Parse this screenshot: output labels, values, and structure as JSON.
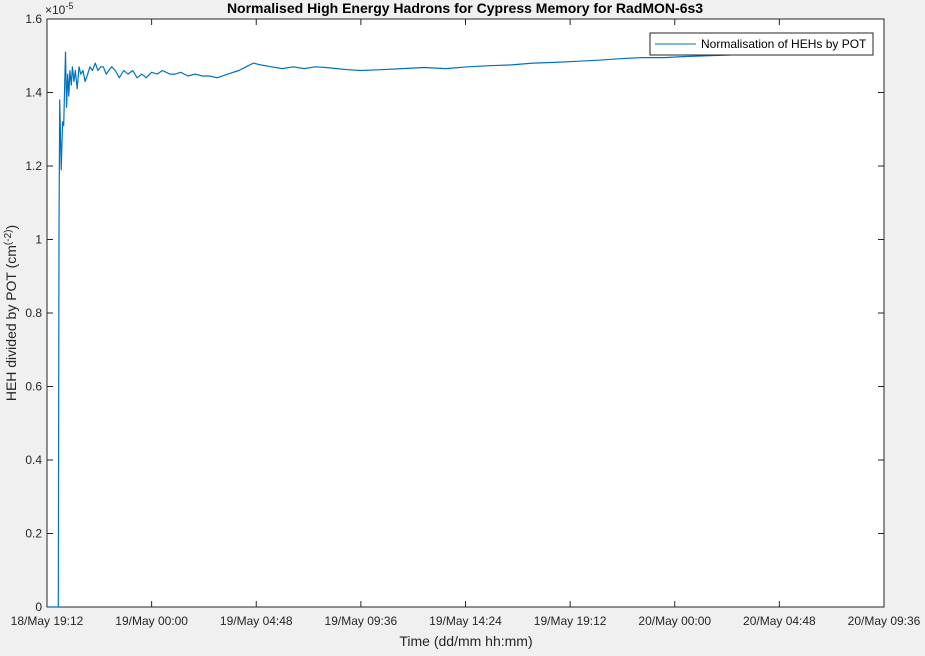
{
  "chart_data": {
    "type": "line",
    "title": "Normalised High Energy Hadrons for Cypress Memory for RadMON-6s3",
    "xlabel": "Time (dd/mm hh:mm)",
    "ylabel_main": "HEH divided by POT (cm",
    "ylabel_sup": "(-2)",
    "ylabel_end": ")",
    "exponent_base": "×10",
    "exponent_power": "-5",
    "x_ticks": [
      "18/May 19:12",
      "19/May 00:00",
      "19/May 04:48",
      "19/May 09:36",
      "19/May 14:24",
      "19/May 19:12",
      "20/May 00:00",
      "20/May 04:48",
      "20/May 09:36"
    ],
    "xlim": [
      "18/May 19:12",
      "20/May 09:36"
    ],
    "y_ticks": [
      "0",
      "0.2",
      "0.4",
      "0.6",
      "0.8",
      "1",
      "1.2",
      "1.4",
      "1.6"
    ],
    "ylim": [
      0,
      1.6
    ],
    "grid": false,
    "legend_position": "top-right",
    "series": [
      {
        "name": "Normalisation of HEHs by POT",
        "color": "#0072bd",
        "x": [
          "18/May 19:12",
          "18/May 19:43",
          "18/May 19:45",
          "18/May 19:47",
          "18/May 19:51",
          "18/May 19:55",
          "18/May 19:58",
          "18/May 20:03",
          "18/May 20:06",
          "18/May 20:09",
          "18/May 20:12",
          "18/May 20:15",
          "18/May 20:19",
          "18/May 20:22",
          "18/May 20:26",
          "18/May 20:30",
          "18/May 20:35",
          "18/May 20:40",
          "18/May 20:45",
          "18/May 20:51",
          "18/May 20:57",
          "18/May 21:04",
          "18/May 21:10",
          "18/May 21:17",
          "18/May 21:25",
          "18/May 21:32",
          "18/May 21:40",
          "18/May 21:47",
          "18/May 21:55",
          "18/May 22:02",
          "18/May 22:10",
          "18/May 22:20",
          "18/May 22:31",
          "18/May 22:43",
          "18/May 22:55",
          "18/May 23:08",
          "18/May 23:20",
          "18/May 23:33",
          "18/May 23:45",
          "19/May 00:00",
          "19/May 00:15",
          "19/May 00:30",
          "19/May 00:50",
          "19/May 01:05",
          "19/May 01:20",
          "19/May 01:40",
          "19/May 02:00",
          "19/May 02:20",
          "19/May 02:40",
          "19/May 03:00",
          "19/May 03:30",
          "19/May 04:00",
          "19/May 04:20",
          "19/May 04:40",
          "19/May 05:00",
          "19/May 05:30",
          "19/May 06:00",
          "19/May 06:30",
          "19/May 07:00",
          "19/May 07:30",
          "19/May 08:00",
          "19/May 08:30",
          "19/May 09:00",
          "19/May 09:36",
          "19/May 10:30",
          "19/May 11:30",
          "19/May 12:30",
          "19/May 13:30",
          "19/May 14:30",
          "19/May 15:30",
          "19/May 16:30",
          "19/May 17:30",
          "19/May 18:30",
          "19/May 19:30",
          "19/May 20:30",
          "19/May 21:30",
          "19/May 22:30",
          "19/May 23:30",
          "20/May 00:30",
          "20/May 01:30",
          "20/May 02:30",
          "20/May 03:30",
          "20/May 04:30",
          "20/May 05:30",
          "20/May 05:50"
        ],
        "values": [
          0.0,
          0.0,
          1.02,
          1.38,
          1.19,
          1.32,
          1.31,
          1.51,
          1.36,
          1.45,
          1.39,
          1.46,
          1.42,
          1.47,
          1.43,
          1.46,
          1.41,
          1.47,
          1.45,
          1.46,
          1.43,
          1.45,
          1.47,
          1.46,
          1.48,
          1.46,
          1.47,
          1.47,
          1.45,
          1.46,
          1.47,
          1.46,
          1.44,
          1.46,
          1.45,
          1.46,
          1.44,
          1.45,
          1.44,
          1.455,
          1.45,
          1.46,
          1.45,
          1.45,
          1.455,
          1.445,
          1.45,
          1.445,
          1.445,
          1.44,
          1.45,
          1.46,
          1.47,
          1.48,
          1.475,
          1.47,
          1.465,
          1.47,
          1.465,
          1.47,
          1.468,
          1.465,
          1.462,
          1.46,
          1.462,
          1.465,
          1.468,
          1.465,
          1.47,
          1.473,
          1.475,
          1.48,
          1.482,
          1.485,
          1.488,
          1.492,
          1.495,
          1.495,
          1.498,
          1.5,
          1.502,
          1.505,
          1.505,
          1.506,
          1.506
        ]
      }
    ]
  }
}
